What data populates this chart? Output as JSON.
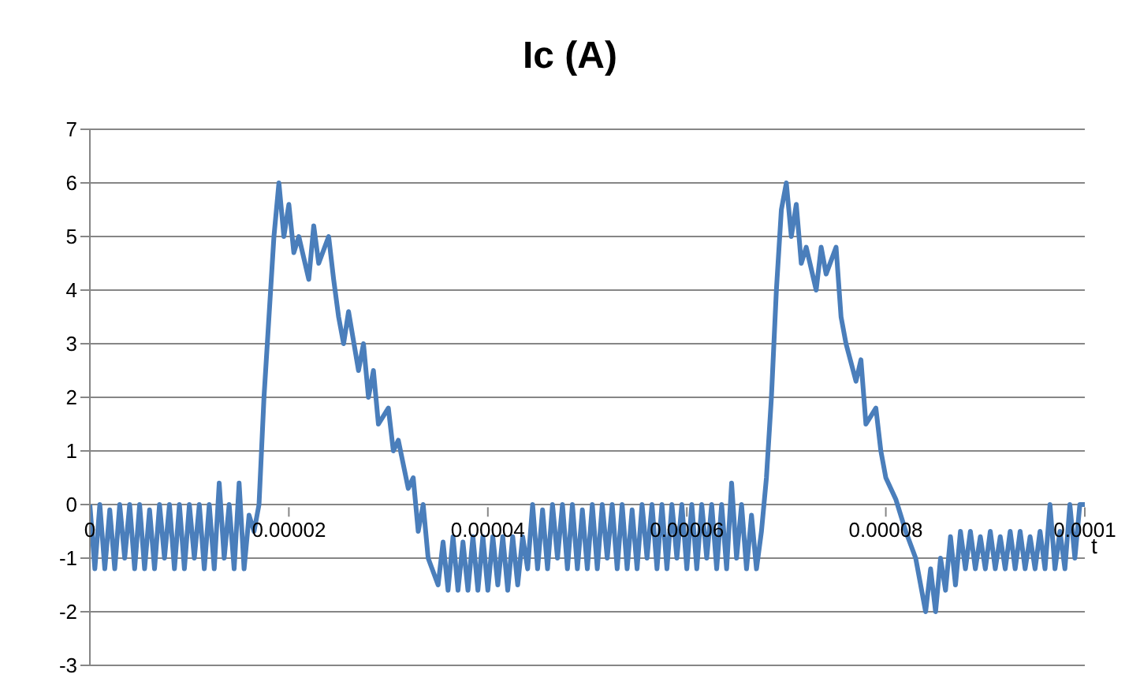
{
  "chart_data": {
    "type": "line",
    "title": "Ic (A)",
    "xlabel": "t",
    "x": [
      0,
      5e-07,
      1e-06,
      1.5e-06,
      2e-06,
      2.5e-06,
      3e-06,
      3.5e-06,
      4e-06,
      4.5e-06,
      5e-06,
      5.5e-06,
      6e-06,
      6.5e-06,
      7e-06,
      7.5e-06,
      8e-06,
      8.5e-06,
      9e-06,
      9.5e-06,
      1e-05,
      1.05e-05,
      1.1e-05,
      1.15e-05,
      1.2e-05,
      1.25e-05,
      1.3e-05,
      1.35e-05,
      1.4e-05,
      1.45e-05,
      1.5e-05,
      1.55e-05,
      1.6e-05,
      1.65e-05,
      1.7e-05,
      1.75e-05,
      1.8e-05,
      1.85e-05,
      1.9e-05,
      1.95e-05,
      2e-05,
      2.05e-05,
      2.1e-05,
      2.2e-05,
      2.25e-05,
      2.3e-05,
      2.4e-05,
      2.45e-05,
      2.5e-05,
      2.55e-05,
      2.6e-05,
      2.7e-05,
      2.75e-05,
      2.8e-05,
      2.85e-05,
      2.9e-05,
      3e-05,
      3.05e-05,
      3.1e-05,
      3.2e-05,
      3.25e-05,
      3.3e-05,
      3.35e-05,
      3.4e-05,
      3.5e-05,
      3.55e-05,
      3.6e-05,
      3.65e-05,
      3.7e-05,
      3.75e-05,
      3.8e-05,
      3.85e-05,
      3.9e-05,
      3.95e-05,
      4e-05,
      4.05e-05,
      4.1e-05,
      4.15e-05,
      4.2e-05,
      4.25e-05,
      4.3e-05,
      4.35e-05,
      4.4e-05,
      4.45e-05,
      4.5e-05,
      4.55e-05,
      4.6e-05,
      4.65e-05,
      4.7e-05,
      4.75e-05,
      4.8e-05,
      4.85e-05,
      4.9e-05,
      4.95e-05,
      5e-05,
      5.05e-05,
      5.1e-05,
      5.15e-05,
      5.2e-05,
      5.25e-05,
      5.3e-05,
      5.35e-05,
      5.4e-05,
      5.45e-05,
      5.5e-05,
      5.55e-05,
      5.6e-05,
      5.65e-05,
      5.7e-05,
      5.75e-05,
      5.8e-05,
      5.85e-05,
      5.9e-05,
      5.95e-05,
      6e-05,
      6.05e-05,
      6.1e-05,
      6.15e-05,
      6.2e-05,
      6.25e-05,
      6.3e-05,
      6.35e-05,
      6.4e-05,
      6.45e-05,
      6.5e-05,
      6.55e-05,
      6.6e-05,
      6.65e-05,
      6.7e-05,
      6.75e-05,
      6.8e-05,
      6.85e-05,
      6.9e-05,
      6.95e-05,
      7e-05,
      7.05e-05,
      7.1e-05,
      7.15e-05,
      7.2e-05,
      7.3e-05,
      7.35e-05,
      7.4e-05,
      7.5e-05,
      7.55e-05,
      7.6e-05,
      7.7e-05,
      7.75e-05,
      7.8e-05,
      7.9e-05,
      7.95e-05,
      8e-05,
      8.1e-05,
      8.2e-05,
      8.3e-05,
      8.35e-05,
      8.4e-05,
      8.45e-05,
      8.5e-05,
      8.55e-05,
      8.6e-05,
      8.65e-05,
      8.7e-05,
      8.75e-05,
      8.8e-05,
      8.85e-05,
      8.9e-05,
      8.95e-05,
      9e-05,
      9.05e-05,
      9.1e-05,
      9.15e-05,
      9.2e-05,
      9.25e-05,
      9.3e-05,
      9.35e-05,
      9.4e-05,
      9.45e-05,
      9.5e-05,
      9.55e-05,
      9.6e-05,
      9.65e-05,
      9.7e-05,
      9.75e-05,
      9.8e-05,
      9.85e-05,
      9.9e-05,
      9.95e-05,
      0.0001
    ],
    "series": [
      {
        "color": "#4a7ebb",
        "values": [
          0,
          -1.2,
          0,
          -1.2,
          -0.1,
          -1.2,
          0,
          -1,
          0,
          -1.2,
          0,
          -1.2,
          -0.1,
          -1.2,
          0,
          -1,
          0,
          -1.2,
          0,
          -1.2,
          0,
          -1,
          0,
          -1.2,
          0,
          -1.2,
          0.4,
          -1,
          0,
          -1.2,
          0.4,
          -1.2,
          -0.2,
          -0.5,
          0,
          2,
          3.5,
          5,
          6,
          5,
          5.6,
          4.7,
          5,
          4.2,
          5.2,
          4.5,
          5,
          4.2,
          3.5,
          3,
          3.6,
          2.5,
          3,
          2,
          2.5,
          1.5,
          1.8,
          1,
          1.2,
          0.3,
          0.5,
          -0.5,
          0,
          -1,
          -1.5,
          -0.7,
          -1.6,
          -0.6,
          -1.6,
          -0.7,
          -1.6,
          -0.6,
          -1.6,
          -0.6,
          -1.6,
          -0.6,
          -1.5,
          -0.6,
          -1.6,
          -0.6,
          -1.5,
          -0.6,
          -1.2,
          0,
          -1.2,
          -0.1,
          -1.2,
          0,
          -1,
          0,
          -1.2,
          0,
          -1.2,
          -0.1,
          -1.2,
          0,
          -1.2,
          0,
          -1,
          0,
          -1.2,
          0,
          -1.2,
          -0.1,
          -1.2,
          0,
          -1,
          0,
          -1.2,
          0,
          -1.2,
          0,
          -1,
          0,
          -1.2,
          0,
          -1.2,
          0,
          -1,
          0,
          -1.2,
          0,
          -1.2,
          0.4,
          -1,
          0,
          -1.2,
          -0.2,
          -1.2,
          -0.5,
          0.5,
          2,
          4,
          5.5,
          6,
          5,
          5.6,
          4.5,
          4.8,
          4,
          4.8,
          4.3,
          4.8,
          3.5,
          3,
          2.3,
          2.7,
          1.5,
          1.8,
          1,
          0.5,
          0.1,
          -0.5,
          -1,
          -1.5,
          -2,
          -1.2,
          -2,
          -1,
          -1.6,
          -0.6,
          -1.5,
          -0.5,
          -1.2,
          -0.5,
          -1.2,
          -0.6,
          -1.2,
          -0.5,
          -1.2,
          -0.6,
          -1.2,
          -0.5,
          -1.2,
          -0.5,
          -1.2,
          -0.6,
          -1.2,
          -0.5,
          -1.2,
          0,
          -1.2,
          -0.5,
          -1.2,
          0,
          -1,
          0,
          0
        ]
      }
    ],
    "xlim": [
      0,
      0.0001
    ],
    "xticks": [
      0,
      {
        "value": 2e-05,
        "label": "0.00002"
      },
      {
        "value": 4e-05,
        "label": "0.00004"
      },
      {
        "value": 6e-05,
        "label": "0.00006"
      },
      {
        "value": 8e-05,
        "label": "0.00008"
      },
      0.0001
    ],
    "ylim": [
      -3,
      7
    ],
    "yticks": [
      -3,
      -2,
      -1,
      0,
      1,
      2,
      3,
      4,
      5,
      6,
      7
    ],
    "grid": "y",
    "legend": false,
    "marker": "none",
    "line_style": "solid"
  }
}
